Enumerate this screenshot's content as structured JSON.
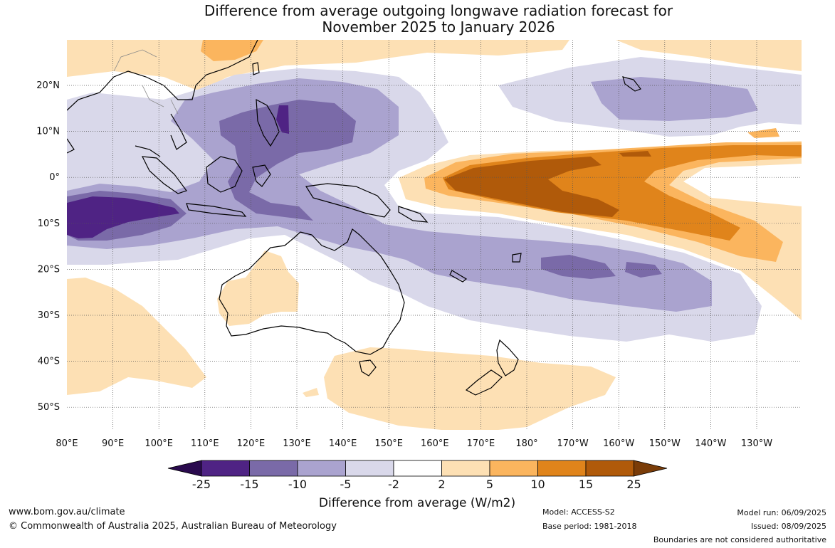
{
  "title": {
    "line1": "Difference from average outgoing longwave radiation forecast for",
    "line2": "November 2025 to January 2026"
  },
  "lat_labels": [
    "20°N",
    "10°N",
    "0°",
    "10°S",
    "20°S",
    "30°S",
    "40°S",
    "50°S"
  ],
  "lon_labels": [
    "80°E",
    "90°E",
    "100°E",
    "110°E",
    "120°E",
    "130°E",
    "140°E",
    "150°E",
    "160°E",
    "170°E",
    "180°",
    "170°W",
    "160°W",
    "150°W",
    "140°W",
    "130°W"
  ],
  "colorbar": {
    "ticks": [
      "-25",
      "-15",
      "-10",
      "-5",
      "-2",
      "2",
      "5",
      "10",
      "15",
      "25"
    ],
    "colors": [
      "#2a0a4e",
      "#4f2384",
      "#7a6aa8",
      "#aaa3cf",
      "#d9d8ea",
      "#ffffff",
      "#fde0b4",
      "#fbb55e",
      "#e0841b",
      "#b05a0a",
      "#7a3c08"
    ],
    "title": "Difference from average (W/m2)"
  },
  "footer": {
    "website": "www.bom.gov.au/climate",
    "copyright": "© Commonwealth of Australia 2025, Australian Bureau of Meteorology",
    "model": "Model: ACCESS-S2",
    "base_period": "Base period: 1981-2018",
    "model_run": "Model run: 06/09/2025",
    "issued": "Issued: 08/09/2025",
    "disclaimer": "Boundaries are not considered authoritative"
  }
}
